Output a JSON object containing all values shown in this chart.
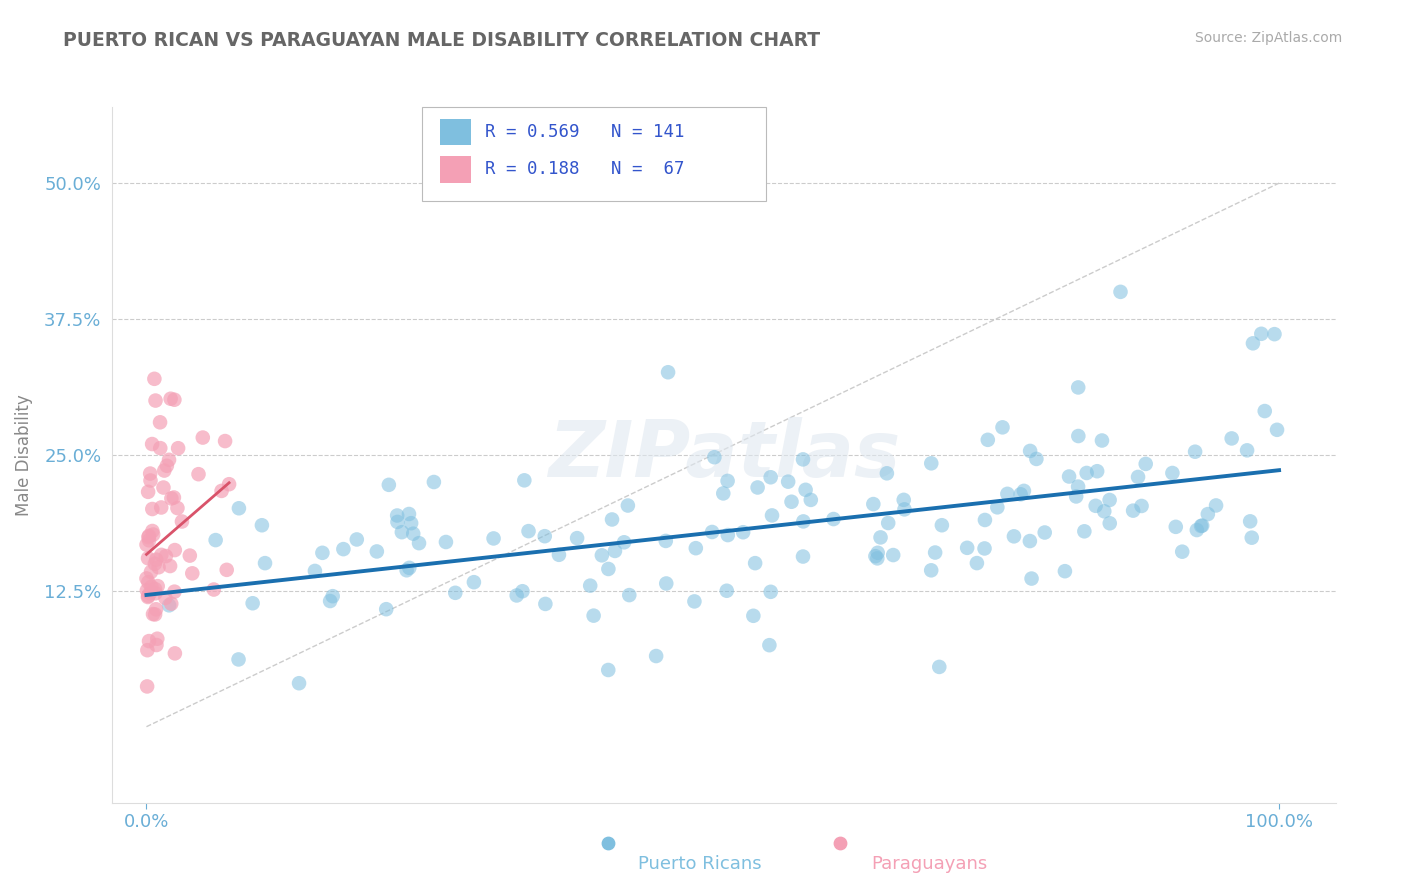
{
  "title": "PUERTO RICAN VS PARAGUAYAN MALE DISABILITY CORRELATION CHART",
  "source": "Source: ZipAtlas.com",
  "ylabel_label": "Male Disability",
  "y_tick_vals": [
    0.125,
    0.25,
    0.375,
    0.5
  ],
  "y_tick_labels": [
    "12.5%",
    "25.0%",
    "37.5%",
    "50.0%"
  ],
  "x_tick_vals": [
    0.0,
    1.0
  ],
  "x_tick_labels": [
    "0.0%",
    "100.0%"
  ],
  "xlim": [
    -0.03,
    1.05
  ],
  "ylim": [
    -0.07,
    0.57
  ],
  "blue_R": 0.569,
  "blue_N": 141,
  "pink_R": 0.188,
  "pink_N": 67,
  "blue_color": "#7fbfdf",
  "blue_line_color": "#1a6faf",
  "pink_color": "#f4a0b5",
  "pink_line_color": "#d9536a",
  "watermark_text": "ZIPatlas",
  "background_color": "#ffffff",
  "grid_color": "#cccccc",
  "legend_text_color": "#3355cc",
  "title_color": "#666666",
  "axis_tick_color": "#6aaed6",
  "source_color": "#aaaaaa",
  "bottom_legend_blue": "Puerto Ricans",
  "bottom_legend_pink": "Paraguayans"
}
